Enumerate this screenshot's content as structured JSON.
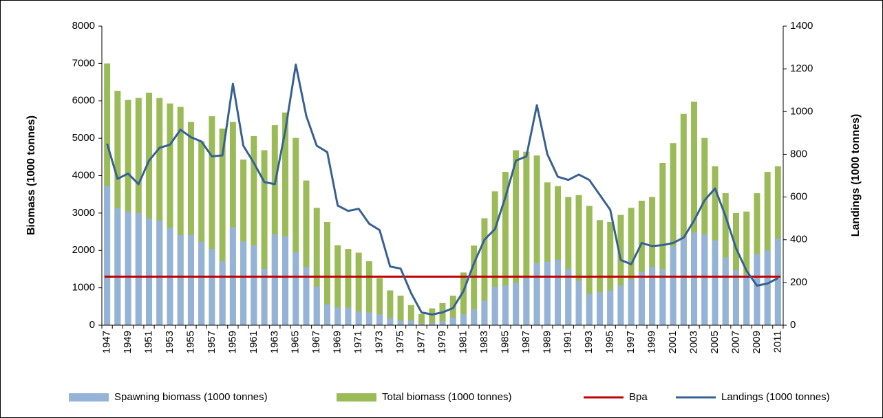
{
  "chart_data": {
    "type": "bar-line",
    "categories": [
      "1947",
      null,
      "1949",
      null,
      "1951",
      null,
      "1953",
      null,
      "1955",
      null,
      "1957",
      null,
      "1959",
      null,
      "1961",
      null,
      "1963",
      null,
      "1965",
      null,
      "1967",
      null,
      "1969",
      null,
      "1971",
      null,
      "1973",
      null,
      "1975",
      null,
      "1977",
      null,
      "1979",
      null,
      "1981",
      null,
      "1983",
      null,
      "1985",
      null,
      "1987",
      null,
      "1989",
      null,
      "1991",
      null,
      "1993",
      null,
      "1995",
      null,
      "1997",
      null,
      "1999",
      null,
      "2001",
      null,
      "2003",
      null,
      "2005",
      null,
      "2007",
      null,
      "2009",
      null,
      "2011"
    ],
    "ylabel": "Biomass (1000 tonnes)",
    "y2label": "Landings (1000 tonnes)",
    "ylim": [
      0,
      8000
    ],
    "yticks": [
      0,
      1000,
      2000,
      3000,
      4000,
      5000,
      6000,
      7000,
      8000
    ],
    "y2lim": [
      0,
      1400
    ],
    "y2ticks": [
      0,
      200,
      400,
      600,
      800,
      1000,
      1200,
      1400
    ],
    "series": [
      {
        "name": "Total biomass (1000 tonnes)",
        "kind": "bar",
        "color": "#9bbb59",
        "values": [
          7000,
          6270,
          6030,
          6080,
          6220,
          6080,
          5930,
          5840,
          5440,
          4920,
          5590,
          5260,
          5440,
          4430,
          5060,
          4680,
          5350,
          5690,
          5010,
          3870,
          3140,
          2760,
          2140,
          2040,
          1940,
          1710,
          1260,
          930,
          790,
          540,
          300,
          450,
          590,
          790,
          1410,
          2130,
          2860,
          3580,
          4100,
          4680,
          4640,
          4540,
          3820,
          3720,
          3430,
          3480,
          3190,
          2810,
          2760,
          2950,
          3140,
          3330,
          3430,
          4340,
          4870,
          5650,
          5980,
          5010,
          4250,
          3530,
          3000,
          3040,
          3530,
          4100,
          4250
        ]
      },
      {
        "name": "Spawning biomass (1000 tonnes)",
        "kind": "bar",
        "color": "#95b3d7",
        "values": [
          3720,
          3130,
          3040,
          3000,
          2860,
          2800,
          2610,
          2410,
          2410,
          2230,
          2040,
          1710,
          2620,
          2240,
          2140,
          1510,
          2430,
          2380,
          1950,
          1560,
          1030,
          560,
          470,
          470,
          360,
          340,
          290,
          190,
          120,
          120,
          50,
          60,
          100,
          200,
          290,
          430,
          650,
          1030,
          1060,
          1130,
          1280,
          1660,
          1700,
          1750,
          1510,
          1180,
          840,
          880,
          930,
          1060,
          1220,
          1420,
          1560,
          1500,
          2110,
          2350,
          2480,
          2430,
          2270,
          1810,
          1470,
          1360,
          1900,
          2000,
          2320
        ]
      },
      {
        "name": "Bpa",
        "kind": "hline",
        "color": "#c00000",
        "value": 1300
      },
      {
        "name": "Landings (1000 tonnes)",
        "kind": "line",
        "axis": "y2",
        "color": "#376092",
        "values": [
          850,
          685,
          710,
          660,
          770,
          830,
          845,
          915,
          880,
          860,
          790,
          795,
          1130,
          840,
          760,
          670,
          660,
          910,
          1220,
          980,
          840,
          810,
          560,
          535,
          545,
          475,
          445,
          275,
          265,
          150,
          60,
          50,
          60,
          80,
          160,
          290,
          400,
          450,
          600,
          770,
          790,
          1030,
          800,
          695,
          680,
          705,
          680,
          610,
          540,
          305,
          285,
          385,
          370,
          375,
          385,
          410,
          490,
          585,
          640,
          510,
          360,
          255,
          185,
          195,
          220
        ]
      }
    ]
  }
}
